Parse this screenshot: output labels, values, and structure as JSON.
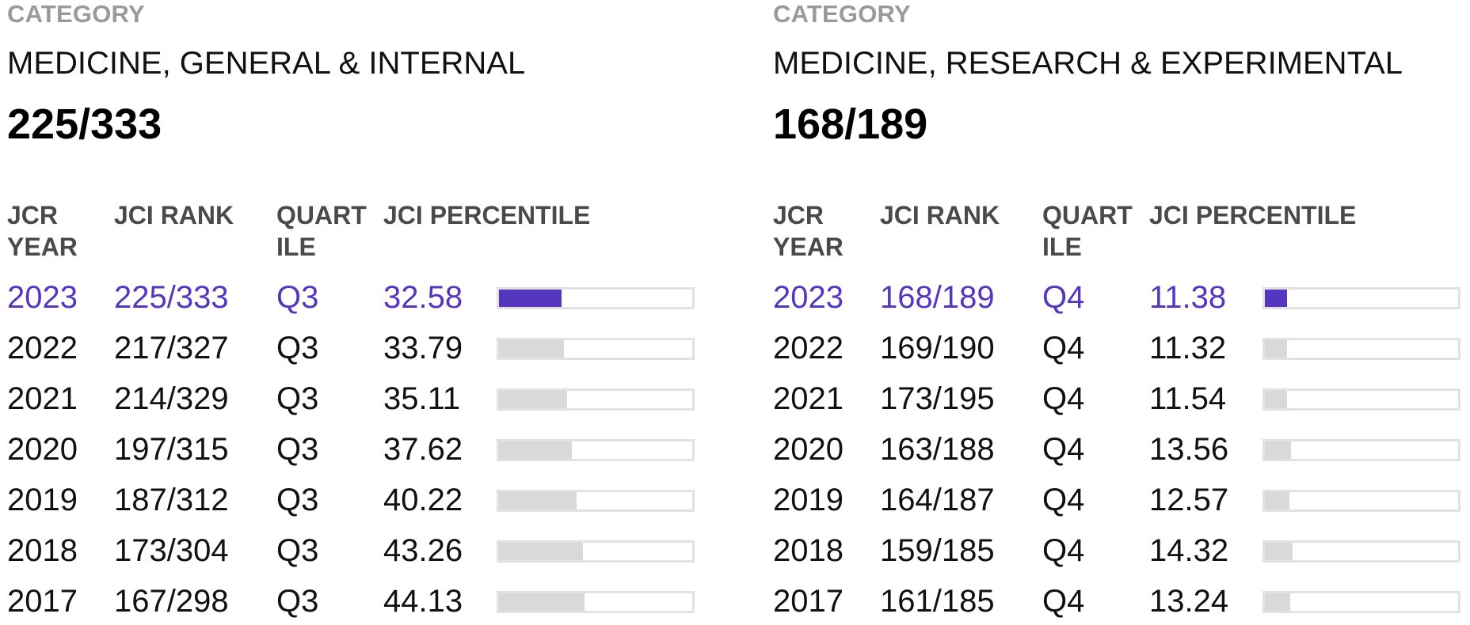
{
  "categories": [
    {
      "label": "CATEGORY",
      "name": "MEDICINE, GENERAL & INTERNAL",
      "rank": "225/333",
      "headers": {
        "year": "JCR\nYEAR",
        "rank": "JCI RANK",
        "quartile": "QUART\nILE",
        "percentile": "JCI PERCENTILE"
      },
      "rows": [
        {
          "year": "2023",
          "rank": "225/333",
          "quartile": "Q3",
          "percentile": "32.58",
          "current": true
        },
        {
          "year": "2022",
          "rank": "217/327",
          "quartile": "Q3",
          "percentile": "33.79",
          "current": false
        },
        {
          "year": "2021",
          "rank": "214/329",
          "quartile": "Q3",
          "percentile": "35.11",
          "current": false
        },
        {
          "year": "2020",
          "rank": "197/315",
          "quartile": "Q3",
          "percentile": "37.62",
          "current": false
        },
        {
          "year": "2019",
          "rank": "187/312",
          "quartile": "Q3",
          "percentile": "40.22",
          "current": false
        },
        {
          "year": "2018",
          "rank": "173/304",
          "quartile": "Q3",
          "percentile": "43.26",
          "current": false
        },
        {
          "year": "2017",
          "rank": "167/298",
          "quartile": "Q3",
          "percentile": "44.13",
          "current": false
        }
      ]
    },
    {
      "label": "CATEGORY",
      "name": "MEDICINE, RESEARCH & EXPERIMENTAL",
      "rank": "168/189",
      "headers": {
        "year": "JCR\nYEAR",
        "rank": "JCI RANK",
        "quartile": "QUART\nILE",
        "percentile": "JCI PERCENTILE"
      },
      "rows": [
        {
          "year": "2023",
          "rank": "168/189",
          "quartile": "Q4",
          "percentile": "11.38",
          "current": true
        },
        {
          "year": "2022",
          "rank": "169/190",
          "quartile": "Q4",
          "percentile": "11.32",
          "current": false
        },
        {
          "year": "2021",
          "rank": "173/195",
          "quartile": "Q4",
          "percentile": "11.54",
          "current": false
        },
        {
          "year": "2020",
          "rank": "163/188",
          "quartile": "Q4",
          "percentile": "13.56",
          "current": false
        },
        {
          "year": "2019",
          "rank": "164/187",
          "quartile": "Q4",
          "percentile": "12.57",
          "current": false
        },
        {
          "year": "2018",
          "rank": "159/185",
          "quartile": "Q4",
          "percentile": "14.32",
          "current": false
        },
        {
          "year": "2017",
          "rank": "161/185",
          "quartile": "Q4",
          "percentile": "13.24",
          "current": false
        }
      ]
    }
  ],
  "colors": {
    "accent": "#5536bf",
    "bar_fill": "#d9d9d9",
    "bar_border": "#e2e2e2",
    "label_gray": "#9a9a9a",
    "header_gray": "#4a4a4a"
  }
}
